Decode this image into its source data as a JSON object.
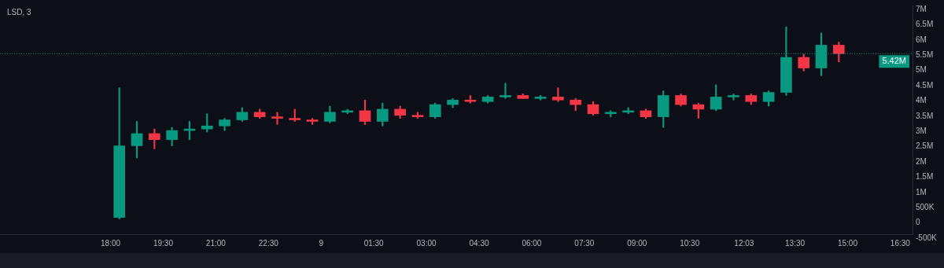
{
  "chart_data": {
    "type": "candlestick",
    "title": "LSD, 3",
    "x": [
      "--01-08T18:15",
      "--01-08T18:45",
      "--01-08T19:15",
      "--01-08T19:45",
      "--01-08T20:15",
      "--01-08T20:45",
      "--01-08T21:15",
      "--01-08T21:45",
      "--01-08T22:15",
      "--01-08T22:45",
      "--01-08T23:15",
      "--01-08T23:45",
      "--01-09T00:15",
      "--01-09T00:45",
      "--01-09T01:15",
      "--01-09T01:45",
      "--01-09T02:15",
      "--01-09T02:45",
      "--01-09T03:15",
      "--01-09T03:45",
      "--01-09T04:15",
      "--01-09T04:45",
      "--01-09T05:15",
      "--01-09T05:45",
      "--01-09T06:15",
      "--01-09T06:45",
      "--01-09T07:15",
      "--01-09T07:45",
      "--01-09T08:15",
      "--01-09T08:45",
      "--01-09T09:15",
      "--01-09T09:45",
      "--01-09T10:15",
      "--01-09T10:45",
      "--01-09T11:15",
      "--01-09T11:45",
      "--01-09T12:15",
      "--01-09T12:45",
      "--01-09T13:15",
      "--01-09T13:45",
      "--01-09T14:15",
      "--01-09T14:45"
    ],
    "ohlc": [
      [
        50000,
        4300000,
        0,
        2400000
      ],
      [
        2400000,
        3200000,
        2000000,
        2800000
      ],
      [
        2800000,
        2950000,
        2300000,
        2600000
      ],
      [
        2600000,
        3000000,
        2400000,
        2900000
      ],
      [
        2900000,
        3200000,
        2600000,
        2950000
      ],
      [
        2950000,
        3450000,
        2850000,
        3050000
      ],
      [
        3050000,
        3300000,
        2900000,
        3250000
      ],
      [
        3250000,
        3650000,
        3200000,
        3500000
      ],
      [
        3500000,
        3600000,
        3300000,
        3350000
      ],
      [
        3350000,
        3500000,
        3100000,
        3300000
      ],
      [
        3300000,
        3600000,
        3200000,
        3250000
      ],
      [
        3250000,
        3300000,
        3100000,
        3200000
      ],
      [
        3200000,
        3700000,
        3150000,
        3500000
      ],
      [
        3500000,
        3600000,
        3450000,
        3550000
      ],
      [
        3550000,
        3900000,
        3100000,
        3200000
      ],
      [
        3200000,
        3800000,
        3050000,
        3600000
      ],
      [
        3600000,
        3700000,
        3300000,
        3400000
      ],
      [
        3400000,
        3500000,
        3300000,
        3350000
      ],
      [
        3350000,
        3800000,
        3300000,
        3750000
      ],
      [
        3750000,
        3950000,
        3650000,
        3900000
      ],
      [
        3900000,
        4050000,
        3800000,
        3850000
      ],
      [
        3850000,
        4050000,
        3800000,
        4000000
      ],
      [
        4000000,
        4450000,
        3950000,
        4050000
      ],
      [
        4050000,
        4100000,
        3950000,
        3950000
      ],
      [
        3950000,
        4050000,
        3900000,
        4000000
      ],
      [
        4000000,
        4300000,
        3850000,
        3900000
      ],
      [
        3900000,
        3950000,
        3550000,
        3750000
      ],
      [
        3750000,
        3850000,
        3400000,
        3450000
      ],
      [
        3450000,
        3550000,
        3350000,
        3500000
      ],
      [
        3500000,
        3650000,
        3450000,
        3550000
      ],
      [
        3550000,
        3600000,
        3300000,
        3350000
      ],
      [
        3350000,
        4200000,
        3000000,
        4050000
      ],
      [
        4050000,
        4100000,
        3700000,
        3750000
      ],
      [
        3750000,
        3800000,
        3300000,
        3600000
      ],
      [
        3600000,
        4400000,
        3550000,
        4000000
      ],
      [
        4000000,
        4100000,
        3900000,
        4050000
      ],
      [
        4050000,
        4100000,
        3750000,
        3850000
      ],
      [
        3850000,
        4200000,
        3700000,
        4150000
      ],
      [
        4150000,
        6300000,
        4050000,
        5300000
      ],
      [
        5300000,
        5400000,
        4850000,
        4950000
      ],
      [
        4950000,
        6100000,
        4700000,
        5700000
      ],
      [
        5700000,
        5800000,
        5150000,
        5420000
      ]
    ],
    "colors": [
      "#089981",
      "#089981",
      "#f23645",
      "#089981",
      "#089981",
      "#089981",
      "#089981",
      "#089981",
      "#f23645",
      "#f23645",
      "#f23645",
      "#f23645",
      "#089981",
      "#089981",
      "#f23645",
      "#089981",
      "#f23645",
      "#f23645",
      "#089981",
      "#089981",
      "#f23645",
      "#089981",
      "#089981",
      "#f23645",
      "#089981",
      "#f23645",
      "#f23645",
      "#f23645",
      "#089981",
      "#089981",
      "#f23645",
      "#089981",
      "#f23645",
      "#f23645",
      "#089981",
      "#089981",
      "#f23645",
      "#089981",
      "#089981",
      "#f23645",
      "#089981",
      "#f23645"
    ],
    "xlim": [
      "--01-08T14:51",
      "--01-09T16:51"
    ],
    "xticks": [
      {
        "value": "--01-08T18:00",
        "label": "18:00"
      },
      {
        "value": "--01-08T19:30",
        "label": "19:30"
      },
      {
        "value": "--01-08T21:00",
        "label": "21:00"
      },
      {
        "value": "--01-08T22:30",
        "label": "22:30"
      },
      {
        "value": "--01-09T00:00",
        "label": "9"
      },
      {
        "value": "--01-09T01:30",
        "label": "01:30"
      },
      {
        "value": "--01-09T03:00",
        "label": "03:00"
      },
      {
        "value": "--01-09T04:30",
        "label": "04:30"
      },
      {
        "value": "--01-09T06:00",
        "label": "06:00"
      },
      {
        "value": "--01-09T07:30",
        "label": "07:30"
      },
      {
        "value": "--01-09T09:00",
        "label": "09:00"
      },
      {
        "value": "--01-09T10:30",
        "label": "10:30"
      },
      {
        "value": "--01-09T12:03",
        "label": "12:03"
      },
      {
        "value": "--01-09T13:30",
        "label": "13:30"
      },
      {
        "value": "--01-09T15:00",
        "label": "15:00"
      },
      {
        "value": "--01-09T16:30",
        "label": "16:30"
      }
    ],
    "ylim": [
      -500000,
      7000000
    ],
    "yticks": [
      {
        "value": -500000,
        "label": "-500K"
      },
      0,
      {
        "value": 500000,
        "label": "500K"
      },
      {
        "value": 1000000,
        "label": "1M"
      },
      {
        "value": 1500000,
        "label": "1.5M"
      },
      {
        "value": 2000000,
        "label": "2M"
      },
      {
        "value": 2500000,
        "label": "2.5M"
      },
      {
        "value": 3000000,
        "label": "3M"
      },
      {
        "value": 3500000,
        "label": "3.5M"
      },
      {
        "value": 4000000,
        "label": "4M"
      },
      {
        "value": 4500000,
        "label": "4.5M"
      },
      {
        "value": 5000000,
        "label": "5M"
      },
      {
        "value": 5500000,
        "label": "5.5M"
      },
      {
        "value": 6000000,
        "label": "6M"
      },
      {
        "value": 6500000,
        "label": "6.5M"
      },
      {
        "value": 7000000,
        "label": "7M"
      }
    ],
    "ref_lines": [
      {
        "axis": "y",
        "value": 5420000,
        "label": "5.42M",
        "color": "#089981",
        "line_style": "dotted"
      }
    ],
    "grid": false,
    "legend": false
  }
}
